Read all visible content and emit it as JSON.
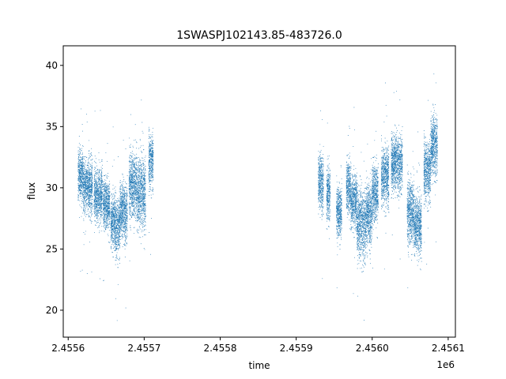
{
  "chart_data": {
    "type": "scatter",
    "title": "1SWASPJ102143.85-483726.0",
    "xlabel": "time",
    "ylabel": "flux",
    "x_offset_label": "1e6",
    "xlim": [
      2455593.5,
      2456109.5
    ],
    "ylim": [
      17.8,
      41.6
    ],
    "x_ticks": [
      {
        "value": 2455600,
        "label": "2.4556"
      },
      {
        "value": 2455700,
        "label": "2.4557"
      },
      {
        "value": 2455800,
        "label": "2.4558"
      },
      {
        "value": 2455900,
        "label": "2.4559"
      },
      {
        "value": 2456000,
        "label": "2.4560"
      },
      {
        "value": 2456100,
        "label": "2.4561"
      }
    ],
    "y_ticks": [
      {
        "value": 20,
        "label": "20"
      },
      {
        "value": 25,
        "label": "25"
      },
      {
        "value": 30,
        "label": "30"
      },
      {
        "value": 35,
        "label": "35"
      },
      {
        "value": 40,
        "label": "40"
      }
    ],
    "grid": false,
    "legend": "none",
    "marker_color": "#1f77b4",
    "segments": [
      {
        "x_start": 2455613,
        "x_end": 2455620,
        "mean": 31.0,
        "spread": 1.0
      },
      {
        "x_start": 2455620,
        "x_end": 2455632,
        "mean": 30.0,
        "spread": 1.1
      },
      {
        "x_start": 2455634,
        "x_end": 2455645,
        "mean": 29.4,
        "spread": 1.1
      },
      {
        "x_start": 2455646,
        "x_end": 2455655,
        "mean": 28.6,
        "spread": 1.0
      },
      {
        "x_start": 2455656,
        "x_end": 2455662,
        "mean": 27.4,
        "spread": 1.1
      },
      {
        "x_start": 2455662,
        "x_end": 2455668,
        "mean": 26.8,
        "spread": 1.2
      },
      {
        "x_start": 2455668,
        "x_end": 2455678,
        "mean": 28.0,
        "spread": 1.1
      },
      {
        "x_start": 2455680,
        "x_end": 2455690,
        "mean": 30.2,
        "spread": 1.3
      },
      {
        "x_start": 2455690,
        "x_end": 2455702,
        "mean": 29.6,
        "spread": 1.5
      },
      {
        "x_start": 2455706,
        "x_end": 2455712,
        "mean": 32.2,
        "spread": 1.1
      },
      {
        "x_start": 2455929,
        "x_end": 2455936,
        "mean": 30.4,
        "spread": 1.1
      },
      {
        "x_start": 2455940,
        "x_end": 2455945,
        "mean": 29.5,
        "spread": 1.1
      },
      {
        "x_start": 2455953,
        "x_end": 2455960,
        "mean": 28.0,
        "spread": 1.0
      },
      {
        "x_start": 2455966,
        "x_end": 2455972,
        "mean": 30.0,
        "spread": 1.1
      },
      {
        "x_start": 2455972,
        "x_end": 2455980,
        "mean": 29.0,
        "spread": 1.1
      },
      {
        "x_start": 2455980,
        "x_end": 2455992,
        "mean": 27.0,
        "spread": 1.4
      },
      {
        "x_start": 2455992,
        "x_end": 2456000,
        "mean": 27.8,
        "spread": 1.2
      },
      {
        "x_start": 2456000,
        "x_end": 2456008,
        "mean": 29.6,
        "spread": 1.2
      },
      {
        "x_start": 2456012,
        "x_end": 2456022,
        "mean": 31.0,
        "spread": 1.2
      },
      {
        "x_start": 2456025,
        "x_end": 2456040,
        "mean": 32.0,
        "spread": 1.1
      },
      {
        "x_start": 2456046,
        "x_end": 2456055,
        "mean": 28.0,
        "spread": 1.3
      },
      {
        "x_start": 2456055,
        "x_end": 2456065,
        "mean": 27.0,
        "spread": 1.2
      },
      {
        "x_start": 2456068,
        "x_end": 2456077,
        "mean": 31.4,
        "spread": 1.2
      },
      {
        "x_start": 2456077,
        "x_end": 2456086,
        "mean": 33.4,
        "spread": 1.2
      }
    ]
  }
}
